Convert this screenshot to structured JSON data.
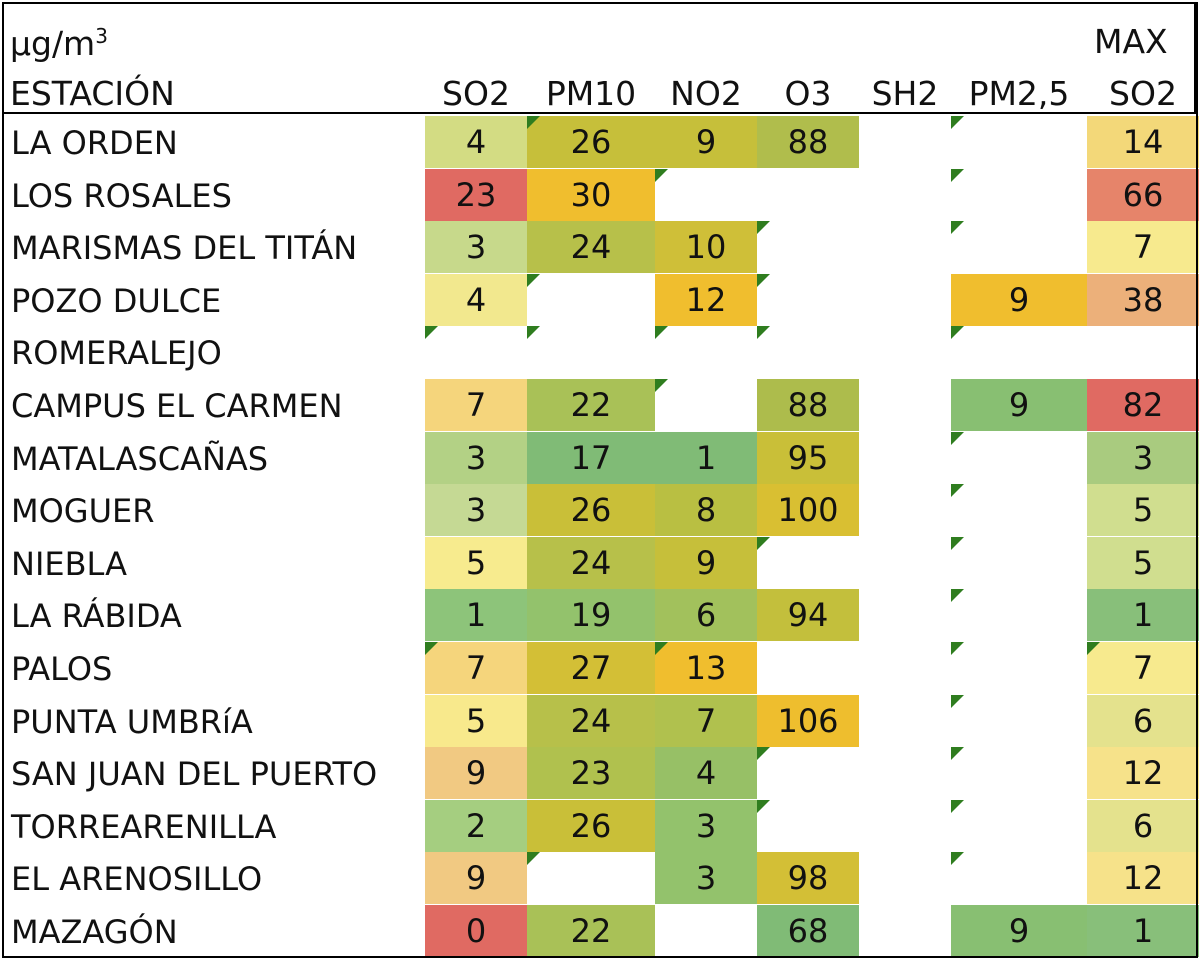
{
  "header": {
    "unit_base": "µg/m",
    "unit_exp": "3",
    "max_label": "MAX",
    "station_label": "ESTACIÓN",
    "columns": [
      "SO2",
      "PM10",
      "NO2",
      "O3",
      "SH2",
      "PM2,5",
      "SO2"
    ]
  },
  "rows": [
    {
      "station": "LA ORDEN",
      "values": [
        "4",
        "26",
        "9",
        "88",
        "",
        "",
        "14"
      ],
      "colors": [
        "#d3dc83",
        "#c6bf3a",
        "#c6bf3a",
        "#b0bd4c",
        "",
        "",
        "#f3d879"
      ],
      "flags": [
        false,
        true,
        false,
        false,
        false,
        true,
        false
      ]
    },
    {
      "station": "LOS ROSALES",
      "values": [
        "23",
        "30",
        "",
        "",
        "",
        "",
        "66"
      ],
      "colors": [
        "#e06a62",
        "#f0be2e",
        "",
        "",
        "",
        "",
        "#e6846a"
      ],
      "flags": [
        false,
        false,
        true,
        false,
        false,
        true,
        false
      ]
    },
    {
      "station": "MARISMAS DEL TITÁN",
      "values": [
        "3",
        "24",
        "10",
        "",
        "",
        "",
        "7"
      ],
      "colors": [
        "#c7d98b",
        "#b7c04a",
        "#cfbf38",
        "",
        "",
        "",
        "#f7ea8e"
      ],
      "flags": [
        false,
        false,
        false,
        true,
        false,
        true,
        false
      ]
    },
    {
      "station": "POZO DULCE",
      "values": [
        "4",
        "",
        "12",
        "",
        "",
        "9",
        "38"
      ],
      "colors": [
        "#f2e88e",
        "",
        "#f0be2e",
        "",
        "",
        "#f0be2e",
        "#ecb07a"
      ],
      "flags": [
        false,
        true,
        false,
        true,
        false,
        false,
        false
      ]
    },
    {
      "station": "ROMERALEJO",
      "values": [
        "",
        "",
        "",
        "",
        "",
        "",
        ""
      ],
      "colors": [
        "",
        "",
        "",
        "",
        "",
        "",
        ""
      ],
      "flags": [
        true,
        true,
        true,
        true,
        false,
        true,
        false
      ]
    },
    {
      "station": "CAMPUS EL CARMEN",
      "values": [
        "7",
        "22",
        "",
        "88",
        "",
        "9",
        "82"
      ],
      "colors": [
        "#f5d57c",
        "#a9c157",
        "",
        "#adbc4c",
        "",
        "#88bf72",
        "#e06a62"
      ],
      "flags": [
        false,
        false,
        true,
        false,
        false,
        false,
        false
      ]
    },
    {
      "station": "MATALASCAÑAS",
      "values": [
        "3",
        "17",
        "1",
        "95",
        "",
        "",
        "3"
      ],
      "colors": [
        "#b3d185",
        "#80bb76",
        "#80bb76",
        "#c9bf38",
        "",
        "",
        "#a9cb7f"
      ],
      "flags": [
        false,
        false,
        false,
        false,
        false,
        true,
        false
      ]
    },
    {
      "station": "MOGUER",
      "values": [
        "3",
        "26",
        "8",
        "100",
        "",
        "",
        "5"
      ],
      "colors": [
        "#c5d994",
        "#c9bf38",
        "#b9bf42",
        "#d9bf32",
        "",
        "",
        "#d0de8f"
      ],
      "flags": [
        false,
        false,
        false,
        false,
        false,
        true,
        false
      ]
    },
    {
      "station": "NIEBLA",
      "values": [
        "5",
        "24",
        "9",
        "",
        "",
        "",
        "5"
      ],
      "colors": [
        "#f7eb8e",
        "#b7c04a",
        "#c6bf3a",
        "",
        "",
        "",
        "#d0de8f"
      ],
      "flags": [
        false,
        false,
        false,
        true,
        false,
        true,
        false
      ]
    },
    {
      "station": "LA RÁBIDA",
      "values": [
        "1",
        "19",
        "6",
        "94",
        "",
        "",
        "1"
      ],
      "colors": [
        "#8dc47a",
        "#93c26c",
        "#a2c15c",
        "#c3bf3c",
        "",
        "",
        "#88bf7a"
      ],
      "flags": [
        false,
        false,
        false,
        false,
        false,
        true,
        false
      ]
    },
    {
      "station": "PALOS",
      "values": [
        "7",
        "27",
        "13",
        "",
        "",
        "",
        "7"
      ],
      "colors": [
        "#f5d57c",
        "#d3bf36",
        "#f0be2e",
        "",
        "",
        "",
        "#f7ea8e"
      ],
      "flags": [
        true,
        false,
        true,
        false,
        false,
        true,
        true
      ]
    },
    {
      "station": "PUNTA UMBRíA",
      "values": [
        "5",
        "24",
        "7",
        "106",
        "",
        "",
        "6"
      ],
      "colors": [
        "#f8e98c",
        "#b7c04a",
        "#b0c14e",
        "#eebe2e",
        "",
        "",
        "#e4e28d"
      ],
      "flags": [
        false,
        false,
        false,
        false,
        false,
        true,
        false
      ]
    },
    {
      "station": "SAN JUAN DEL PUERTO",
      "values": [
        "9",
        "23",
        "4",
        "",
        "",
        "",
        "12"
      ],
      "colors": [
        "#f1c982",
        "#b0c14e",
        "#97c066",
        "",
        "",
        "",
        "#f6e28a"
      ],
      "flags": [
        false,
        false,
        false,
        true,
        false,
        true,
        false
      ]
    },
    {
      "station": "TORREARENILLA",
      "values": [
        "2",
        "26",
        "3",
        "",
        "",
        "",
        "6"
      ],
      "colors": [
        "#a5ce80",
        "#c9bf38",
        "#93c26c",
        "",
        "",
        "",
        "#e4e28d"
      ],
      "flags": [
        false,
        false,
        false,
        true,
        false,
        true,
        false
      ]
    },
    {
      "station": "EL ARENOSILLO",
      "values": [
        "9",
        "",
        "3",
        "98",
        "",
        "",
        "12"
      ],
      "colors": [
        "#f1c982",
        "",
        "#93c26c",
        "#d3bf36",
        "",
        "",
        "#f6e28a"
      ],
      "flags": [
        false,
        true,
        false,
        false,
        false,
        true,
        false
      ]
    },
    {
      "station": "MAZAGÓN",
      "values": [
        "0",
        "22",
        "",
        "68",
        "",
        "9",
        "1"
      ],
      "colors": [
        "#e06a62",
        "#a9c157",
        "",
        "#80bb76",
        "",
        "#88bf72",
        "#88bf7a"
      ],
      "flags": [
        false,
        false,
        false,
        false,
        false,
        false,
        false
      ]
    }
  ]
}
